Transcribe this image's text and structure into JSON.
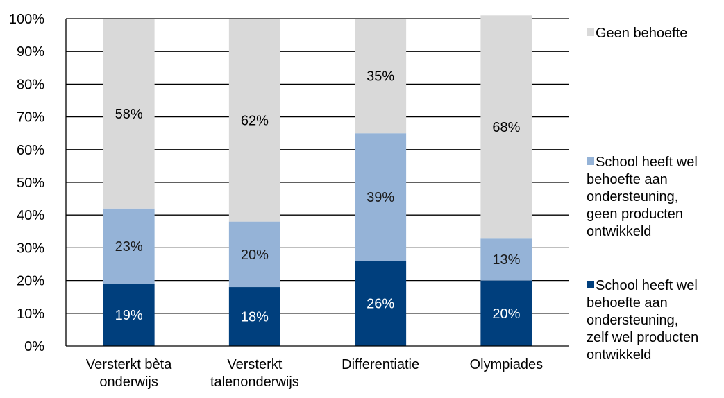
{
  "chart_data": {
    "type": "bar",
    "stacked": true,
    "percent_stacked": true,
    "categories": [
      [
        "Versterkt bèta",
        "onderwijs"
      ],
      [
        "Versterkt",
        "talenonderwijs"
      ],
      [
        "Differentiatie"
      ],
      [
        "Olympiades"
      ]
    ],
    "series": [
      {
        "name": "School heeft wel behoefte aan ondersteuning, zelf wel producten ontwikkeld",
        "name_lines": [
          "School heeft wel",
          "behoefte aan",
          "ondersteuning,",
          "zelf wel producten",
          "ontwikkeld"
        ],
        "values": [
          19,
          18,
          26,
          20
        ],
        "labels": [
          "19%",
          "18%",
          "26%",
          "20%"
        ],
        "color": "#003f7d",
        "label_color": "#ffffff"
      },
      {
        "name": "School heeft wel behoefte aan ondersteuning, geen producten ontwikkeld",
        "name_lines": [
          "School heeft wel",
          "behoefte aan",
          "ondersteuning,",
          "geen producten",
          "ontwikkeld"
        ],
        "values": [
          23,
          20,
          39,
          13
        ],
        "labels": [
          "23%",
          "20%",
          "39%",
          "13%"
        ],
        "color": "#95b3d7",
        "label_color": "#1a1a1a"
      },
      {
        "name": "Geen behoefte",
        "name_lines": [
          "Geen behoefte"
        ],
        "values": [
          58,
          62,
          35,
          68
        ],
        "labels": [
          "58%",
          "62%",
          "35%",
          "68%"
        ],
        "color": "#d9d9d9",
        "label_color": "#000000"
      }
    ],
    "ylim": [
      0,
      100
    ],
    "yticks": [
      "0%",
      "10%",
      "20%",
      "30%",
      "40%",
      "50%",
      "60%",
      "70%",
      "80%",
      "90%",
      "100%"
    ],
    "grid": true,
    "legend": "right",
    "xlabel": "",
    "ylabel": "",
    "title": ""
  }
}
